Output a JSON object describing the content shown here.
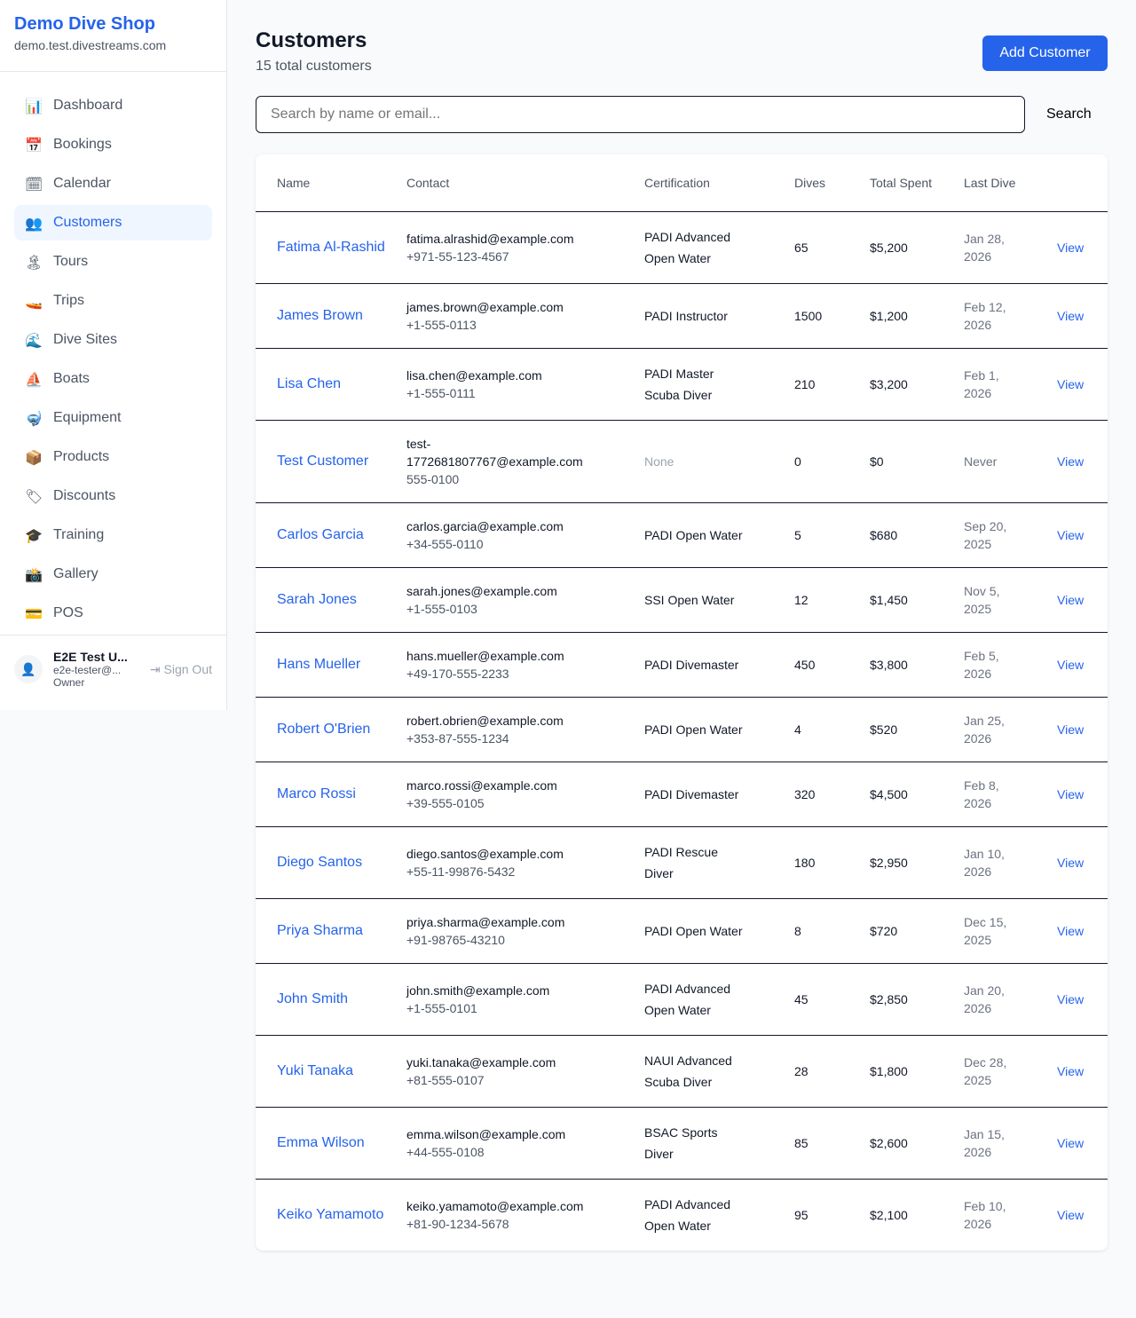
{
  "brand": {
    "name": "Demo Dive Shop",
    "domain": "demo.test.divestreams.com"
  },
  "nav": [
    {
      "icon": "📊",
      "label": "Dashboard",
      "active": false
    },
    {
      "icon": "📅",
      "label": "Bookings",
      "active": false
    },
    {
      "icon": "🗓",
      "label": "Calendar",
      "active": false
    },
    {
      "icon": "👥",
      "label": "Customers",
      "active": true
    },
    {
      "icon": "🏝",
      "label": "Tours",
      "active": false
    },
    {
      "icon": "🚤",
      "label": "Trips",
      "active": false
    },
    {
      "icon": "🌊",
      "label": "Dive Sites",
      "active": false
    },
    {
      "icon": "⛵",
      "label": "Boats",
      "active": false
    },
    {
      "icon": "🤿",
      "label": "Equipment",
      "active": false
    },
    {
      "icon": "📦",
      "label": "Products",
      "active": false
    },
    {
      "icon": "🏷",
      "label": "Discounts",
      "active": false
    },
    {
      "icon": "🎓",
      "label": "Training",
      "active": false
    },
    {
      "icon": "📸",
      "label": "Gallery",
      "active": false
    },
    {
      "icon": "💳",
      "label": "POS",
      "active": false
    }
  ],
  "user": {
    "name": "E2E Test U...",
    "email": "e2e-tester@...",
    "role": "Owner",
    "signout": "Sign Out"
  },
  "header": {
    "title": "Customers",
    "subtitle": "15 total customers",
    "add_label": "Add Customer"
  },
  "search": {
    "placeholder": "Search by name or email...",
    "button": "Search"
  },
  "table": {
    "headers": [
      "Name",
      "Contact",
      "Certification",
      "Dives",
      "Total Spent",
      "Last Dive",
      ""
    ],
    "rows": [
      {
        "name": "Fatima Al-Rashid",
        "email": "fatima.alrashid@example.com",
        "phone": "+971-55-123-4567",
        "cert": "PADI Advanced Open Water",
        "dives": "65",
        "spent": "$5,200",
        "last": "Jan 28, 2026",
        "action": "View"
      },
      {
        "name": "James Brown",
        "email": "james.brown@example.com",
        "phone": "+1-555-0113",
        "cert": "PADI Instructor",
        "dives": "1500",
        "spent": "$1,200",
        "last": "Feb 12, 2026",
        "action": "View"
      },
      {
        "name": "Lisa Chen",
        "email": "lisa.chen@example.com",
        "phone": "+1-555-0111",
        "cert": "PADI Master Scuba Diver",
        "dives": "210",
        "spent": "$3,200",
        "last": "Feb 1, 2026",
        "action": "View"
      },
      {
        "name": "Test Customer",
        "email": "test-1772681807767@example.com",
        "phone": "555-0100",
        "cert": "None",
        "dives": "0",
        "spent": "$0",
        "last": "Never",
        "action": "View"
      },
      {
        "name": "Carlos Garcia",
        "email": "carlos.garcia@example.com",
        "phone": "+34-555-0110",
        "cert": "PADI Open Water",
        "dives": "5",
        "spent": "$680",
        "last": "Sep 20, 2025",
        "action": "View"
      },
      {
        "name": "Sarah Jones",
        "email": "sarah.jones@example.com",
        "phone": "+1-555-0103",
        "cert": "SSI Open Water",
        "dives": "12",
        "spent": "$1,450",
        "last": "Nov 5, 2025",
        "action": "View"
      },
      {
        "name": "Hans Mueller",
        "email": "hans.mueller@example.com",
        "phone": "+49-170-555-2233",
        "cert": "PADI Divemaster",
        "dives": "450",
        "spent": "$3,800",
        "last": "Feb 5, 2026",
        "action": "View"
      },
      {
        "name": "Robert O'Brien",
        "email": "robert.obrien@example.com",
        "phone": "+353-87-555-1234",
        "cert": "PADI Open Water",
        "dives": "4",
        "spent": "$520",
        "last": "Jan 25, 2026",
        "action": "View"
      },
      {
        "name": "Marco Rossi",
        "email": "marco.rossi@example.com",
        "phone": "+39-555-0105",
        "cert": "PADI Divemaster",
        "dives": "320",
        "spent": "$4,500",
        "last": "Feb 8, 2026",
        "action": "View"
      },
      {
        "name": "Diego Santos",
        "email": "diego.santos@example.com",
        "phone": "+55-11-99876-5432",
        "cert": "PADI Rescue Diver",
        "dives": "180",
        "spent": "$2,950",
        "last": "Jan 10, 2026",
        "action": "View"
      },
      {
        "name": "Priya Sharma",
        "email": "priya.sharma@example.com",
        "phone": "+91-98765-43210",
        "cert": "PADI Open Water",
        "dives": "8",
        "spent": "$720",
        "last": "Dec 15, 2025",
        "action": "View"
      },
      {
        "name": "John Smith",
        "email": "john.smith@example.com",
        "phone": "+1-555-0101",
        "cert": "PADI Advanced Open Water",
        "dives": "45",
        "spent": "$2,850",
        "last": "Jan 20, 2026",
        "action": "View"
      },
      {
        "name": "Yuki Tanaka",
        "email": "yuki.tanaka@example.com",
        "phone": "+81-555-0107",
        "cert": "NAUI Advanced Scuba Diver",
        "dives": "28",
        "spent": "$1,800",
        "last": "Dec 28, 2025",
        "action": "View"
      },
      {
        "name": "Emma Wilson",
        "email": "emma.wilson@example.com",
        "phone": "+44-555-0108",
        "cert": "BSAC Sports Diver",
        "dives": "85",
        "spent": "$2,600",
        "last": "Jan 15, 2026",
        "action": "View"
      },
      {
        "name": "Keiko Yamamoto",
        "email": "keiko.yamamoto@example.com",
        "phone": "+81-90-1234-5678",
        "cert": "PADI Advanced Open Water",
        "dives": "95",
        "spent": "$2,100",
        "last": "Feb 10, 2026",
        "action": "View"
      }
    ]
  },
  "colors": {
    "accent": "#2563eb",
    "active_bg": "#eff6ff"
  }
}
